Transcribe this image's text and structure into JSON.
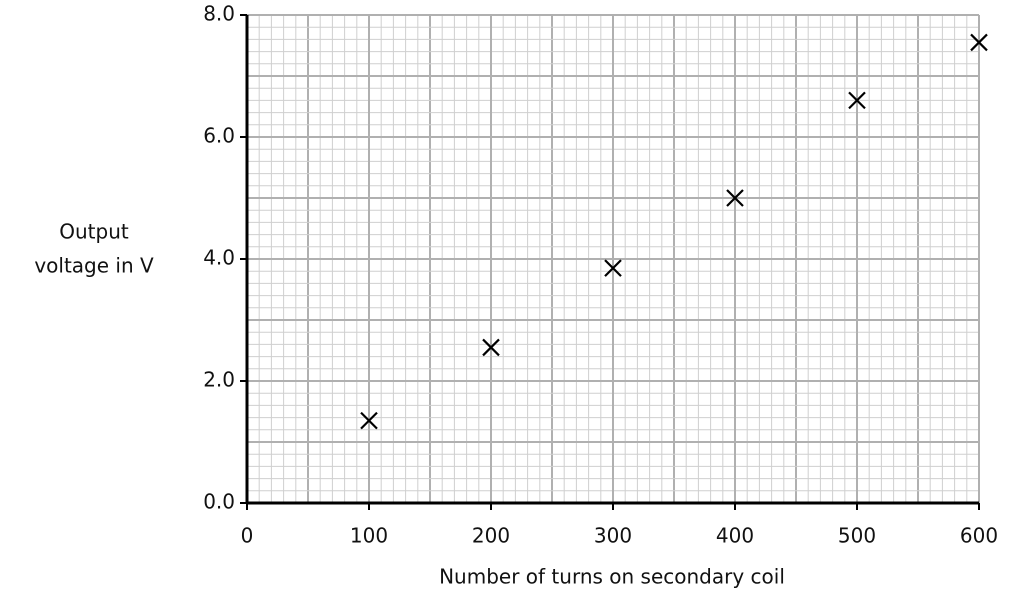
{
  "chart_data": {
    "type": "scatter",
    "xlabel": "Number of turns on secondary coil",
    "ylabel": [
      "Output",
      "voltage in V"
    ],
    "x": [
      100,
      200,
      300,
      400,
      500,
      600
    ],
    "values": [
      1.35,
      2.55,
      3.85,
      5.0,
      6.6,
      7.55
    ],
    "marker": "x",
    "color": "#000000",
    "xlim": [
      0,
      600
    ],
    "xticks": [
      0,
      100,
      200,
      300,
      400,
      500,
      600
    ],
    "ylim": [
      0,
      8
    ],
    "yticks": [
      {
        "value": 0,
        "label": "0.0"
      },
      {
        "value": 2,
        "label": "2.0"
      },
      {
        "value": 4,
        "label": "4.0"
      },
      {
        "value": 6,
        "label": "6.0"
      },
      {
        "value": 8,
        "label": "8.0"
      }
    ],
    "grid": true
  }
}
